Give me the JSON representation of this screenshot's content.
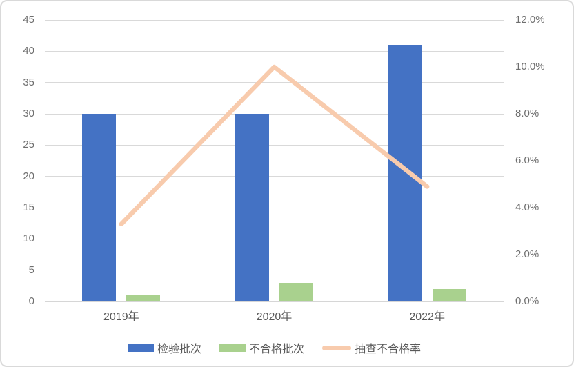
{
  "chart_title": "",
  "frame": {
    "background": "#ffffff",
    "border_color": "#d9d9d9",
    "gridline_color": "#d9d9d9",
    "axis_line_color": "#d6d6d6",
    "tick_text_color": "#6e6e6e",
    "label_text_color": "#595959"
  },
  "chart_data": {
    "type": "combo",
    "categories": [
      "2019年",
      "2020年",
      "2022年"
    ],
    "series": [
      {
        "name": "检验批次",
        "data_name": "inspection-batches",
        "type": "bar",
        "axis": "left",
        "color": "#4472c4",
        "values": [
          30,
          30,
          41
        ]
      },
      {
        "name": "不合格批次",
        "data_name": "failed-batches",
        "type": "bar",
        "axis": "left",
        "color": "#a9d18e",
        "values": [
          1,
          3,
          2
        ]
      },
      {
        "name": "抽查不合格率",
        "data_name": "failure-rate",
        "type": "line",
        "axis": "right",
        "color": "#f8cbad",
        "values_percent": [
          3.3,
          10.0,
          4.9
        ]
      }
    ],
    "left_axis": {
      "min": 0,
      "max": 45,
      "step": 5,
      "ticks": [
        0,
        5,
        10,
        15,
        20,
        25,
        30,
        35,
        40,
        45
      ]
    },
    "right_axis": {
      "min_percent": 0,
      "max_percent": 12,
      "step_percent": 2,
      "ticks_percent": [
        0,
        2,
        4,
        6,
        8,
        10,
        12
      ],
      "tick_labels": [
        "0.0%",
        "2.0%",
        "4.0%",
        "6.0%",
        "8.0%",
        "10.0%",
        "12.0%"
      ]
    },
    "grid": true,
    "legend_position": "bottom"
  }
}
